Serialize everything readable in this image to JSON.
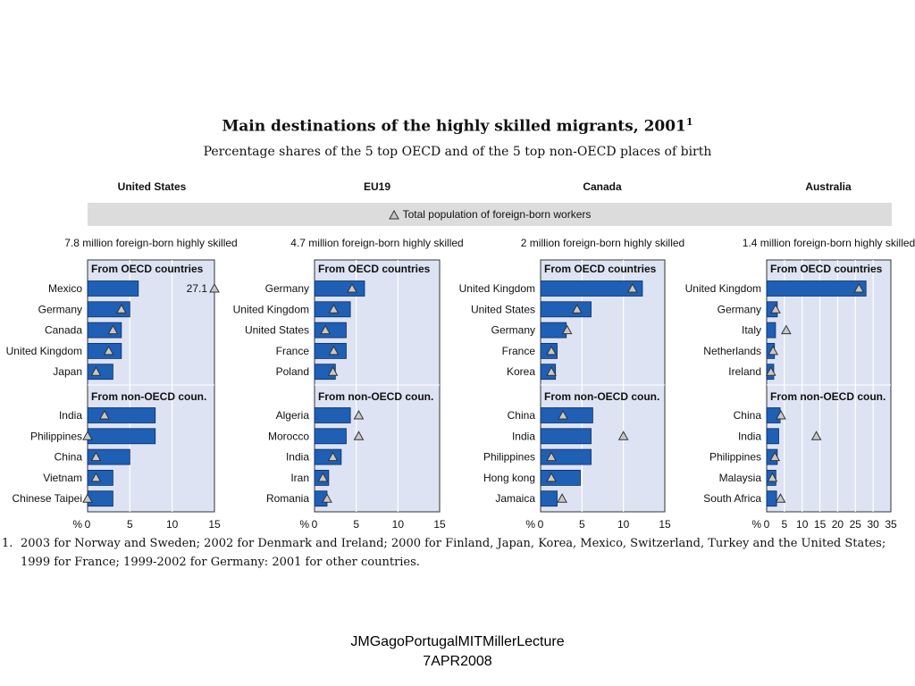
{
  "title": "Main destinations of the highly skilled migrants, 2001",
  "title_sup": "1",
  "subtitle": "Percentage shares of the 5 top OECD and of the 5 top non-OECD places of birth",
  "legend_label": "Total population of foreign-born workers",
  "colors": {
    "bar": "#1f5fb4",
    "panel": "#dde3f2",
    "legend_bg": "#dcdcdc",
    "triangle_fill": "#c8c8c8"
  },
  "footnote": {
    "num": "1.",
    "text": "2003 for Norway and Sweden; 2002 for Denmark and Ireland; 2000 for Finland, Japan, Korea, Mexico, Switzerland, Turkey and the United States; 1999 for France; 1999-2002 for Germany: 2001 for other countries."
  },
  "credit": {
    "line1": "JMGagoPortugalMITMillerLecture",
    "line2": "7APR2008"
  },
  "chart_data": [
    {
      "type": "bar",
      "title": "United States",
      "subtitle": "7.8 million foreign-born highly skilled",
      "xlim": [
        0,
        15
      ],
      "ticks": [
        0,
        5,
        10,
        15
      ],
      "axis_unit": "%",
      "groups": [
        {
          "label": "From OECD countries",
          "categories": [
            "Mexico",
            "Germany",
            "Canada",
            "United Kingdom",
            "Japan"
          ],
          "values": [
            6,
            5,
            4,
            4,
            3
          ],
          "total_population": [
            27.1,
            4,
            3,
            2.5,
            1
          ]
        },
        {
          "label": "From non-OECD coun.",
          "categories": [
            "India",
            "Philippines",
            "China",
            "Vietnam",
            "Chinese Taipei"
          ],
          "values": [
            8,
            8,
            5,
            3,
            3
          ],
          "total_population": [
            2,
            0,
            1,
            1,
            0
          ]
        }
      ],
      "annotations": [
        {
          "text": "27.1",
          "category": "Mexico"
        }
      ]
    },
    {
      "type": "bar",
      "title": "EU19",
      "subtitle": "4.7 million foreign-born highly skilled",
      "xlim": [
        0,
        15
      ],
      "ticks": [
        0,
        5,
        10,
        15
      ],
      "axis_unit": "%",
      "groups": [
        {
          "label": "From OECD countries",
          "categories": [
            "Germany",
            "United Kingdom",
            "United States",
            "France",
            "Poland"
          ],
          "values": [
            6,
            4.3,
            3.8,
            3.8,
            2.5
          ],
          "total_population": [
            4.5,
            2.3,
            1.3,
            2.3,
            2.2
          ]
        },
        {
          "label": "From non-OECD coun.",
          "categories": [
            "Algeria",
            "Morocco",
            "India",
            "Iran",
            "Romania"
          ],
          "values": [
            4.3,
            3.8,
            3.2,
            1.7,
            1.5
          ],
          "total_population": [
            5.3,
            5.3,
            2.2,
            1,
            1.5
          ]
        }
      ]
    },
    {
      "type": "bar",
      "title": "Canada",
      "subtitle": "2 million foreign-born highly skilled",
      "xlim": [
        0,
        15
      ],
      "ticks": [
        0,
        5,
        10,
        15
      ],
      "axis_unit": "%",
      "groups": [
        {
          "label": "From OECD countries",
          "categories": [
            "United Kingdom",
            "United States",
            "Germany",
            "France",
            "Korea"
          ],
          "values": [
            12.3,
            6.1,
            3.1,
            2,
            1.8
          ],
          "total_population": [
            11.1,
            4.4,
            3.2,
            1.3,
            1.3
          ]
        },
        {
          "label": "From non-OECD coun.",
          "categories": [
            "China",
            "India",
            "Philippines",
            "Hong kong",
            "Jamaica"
          ],
          "values": [
            6.3,
            6.1,
            6.1,
            4.8,
            2
          ],
          "total_population": [
            2.7,
            10,
            1.3,
            1.3,
            2.6
          ]
        }
      ]
    },
    {
      "type": "bar",
      "title": "Australia",
      "subtitle": "1.4 million foreign-born highly skilled",
      "xlim": [
        0,
        35
      ],
      "ticks": [
        0,
        5,
        10,
        15,
        20,
        25,
        30,
        35
      ],
      "axis_unit": "%",
      "groups": [
        {
          "label": "From OECD countries",
          "categories": [
            "United Kingdom",
            "Germany",
            "Italy",
            "Netherlands",
            "Ireland"
          ],
          "values": [
            28,
            3,
            2.5,
            2.2,
            2
          ],
          "total_population": [
            26,
            2.5,
            5.5,
            1.8,
            1.2
          ]
        },
        {
          "label": "From non-OECD coun.",
          "categories": [
            "China",
            "India",
            "Philippines",
            "Malaysia",
            "South Africa"
          ],
          "values": [
            3.8,
            3.4,
            3,
            2.6,
            2.8
          ],
          "total_population": [
            4,
            14,
            2.3,
            1.6,
            3.9
          ]
        }
      ]
    }
  ]
}
